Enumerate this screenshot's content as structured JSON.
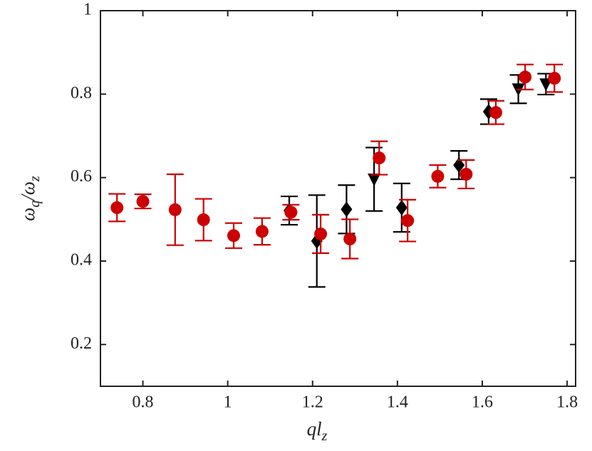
{
  "chart_data": {
    "type": "errorbar-scatter",
    "xlabel": {
      "main": "ql",
      "sub": "z"
    },
    "ylabel": {
      "p1": "ω",
      "s1": "q",
      "p2": "/ω",
      "s2": "z"
    },
    "xlim": [
      0.7,
      1.82
    ],
    "ylim": [
      0.1,
      1
    ],
    "xticks": [
      0.8,
      1,
      1.2,
      1.4,
      1.6,
      1.8
    ],
    "yticks": [
      0.2,
      0.4,
      0.6,
      0.8,
      1
    ],
    "series": [
      {
        "color": "#000000",
        "marker": "diamond",
        "x": [
          1.145,
          1.21,
          1.28,
          1.41,
          1.545,
          1.615
        ],
        "values": [
          0.521,
          0.448,
          0.524,
          0.528,
          0.63,
          0.758
        ],
        "errors": [
          0.034,
          0.11,
          0.058,
          0.058,
          0.034,
          0.03
        ]
      },
      {
        "color": "#000000",
        "marker": "triangle-down",
        "x": [
          1.345,
          1.685,
          1.75
        ],
        "values": [
          0.596,
          0.812,
          0.824
        ],
        "errors": [
          0.076,
          0.034,
          0.025
        ]
      },
      {
        "color": "#cc0000",
        "marker": "circle",
        "x": [
          0.739,
          0.8,
          0.876,
          0.943,
          1.014,
          1.081,
          1.149,
          1.219,
          1.288,
          1.357,
          1.424,
          1.495,
          1.562,
          1.632,
          1.701,
          1.77
        ],
        "values": [
          0.528,
          0.543,
          0.523,
          0.499,
          0.461,
          0.471,
          0.517,
          0.465,
          0.453,
          0.647,
          0.497,
          0.603,
          0.608,
          0.756,
          0.841,
          0.838
        ],
        "errors": [
          0.033,
          0.017,
          0.085,
          0.05,
          0.03,
          0.032,
          0.018,
          0.046,
          0.047,
          0.04,
          0.05,
          0.027,
          0.034,
          0.028,
          0.03,
          0.033
        ]
      }
    ]
  }
}
